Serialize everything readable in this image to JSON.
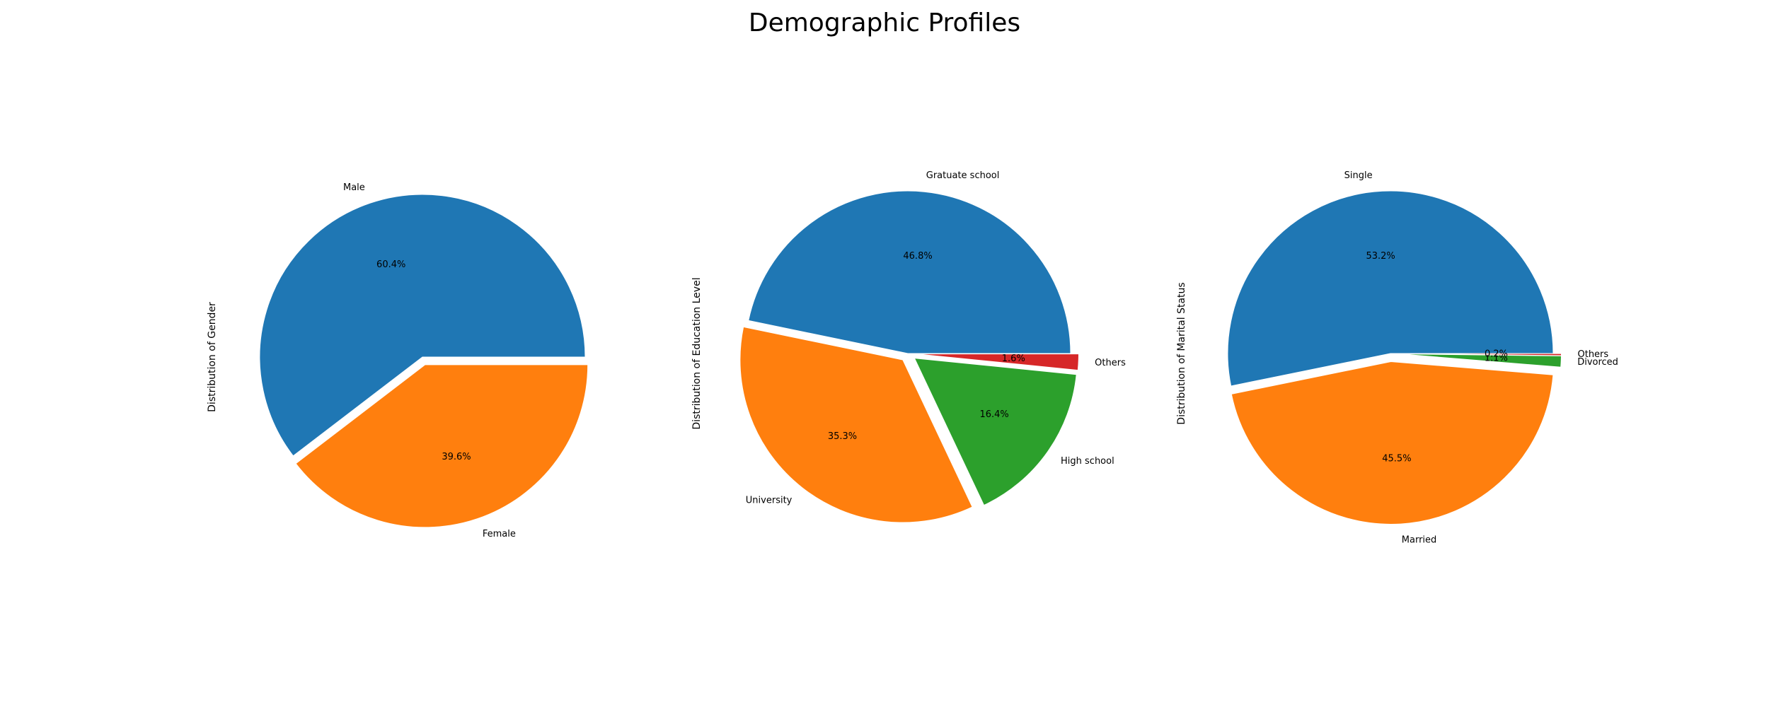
{
  "figure": {
    "title": "Demographic Profiles"
  },
  "chart_data": [
    {
      "type": "pie",
      "ylabel": "Distribution of Gender",
      "labels": [
        "Male",
        "Female"
      ],
      "values": [
        60.4,
        39.6
      ],
      "pct_labels": [
        "60.4%",
        "39.6%"
      ],
      "colors": [
        "#1f77b4",
        "#ff7f0e"
      ],
      "explode": [
        0,
        0.05
      ]
    },
    {
      "type": "pie",
      "ylabel": "Distribution of Education Level",
      "labels": [
        "Gratuate school",
        "University",
        "High school",
        "Others"
      ],
      "values": [
        46.8,
        35.3,
        16.4,
        1.6
      ],
      "pct_labels": [
        "46.8%",
        "35.3%",
        "16.4%",
        "1.6%"
      ],
      "colors": [
        "#1f77b4",
        "#ff7f0e",
        "#2ca02c",
        "#d62728"
      ],
      "explode": [
        0,
        0.05,
        0.05,
        0.05
      ]
    },
    {
      "type": "pie",
      "ylabel": "Distribution of Marital Status",
      "labels": [
        "Single",
        "Married",
        "Divorced",
        "Others"
      ],
      "values": [
        53.2,
        45.5,
        1.1,
        0.2
      ],
      "pct_labels": [
        "53.2%",
        "45.5%",
        "1.1%",
        "0.2%"
      ],
      "colors": [
        "#1f77b4",
        "#ff7f0e",
        "#2ca02c",
        "#d62728"
      ],
      "explode": [
        0,
        0.05,
        0.05,
        0.05
      ]
    }
  ]
}
